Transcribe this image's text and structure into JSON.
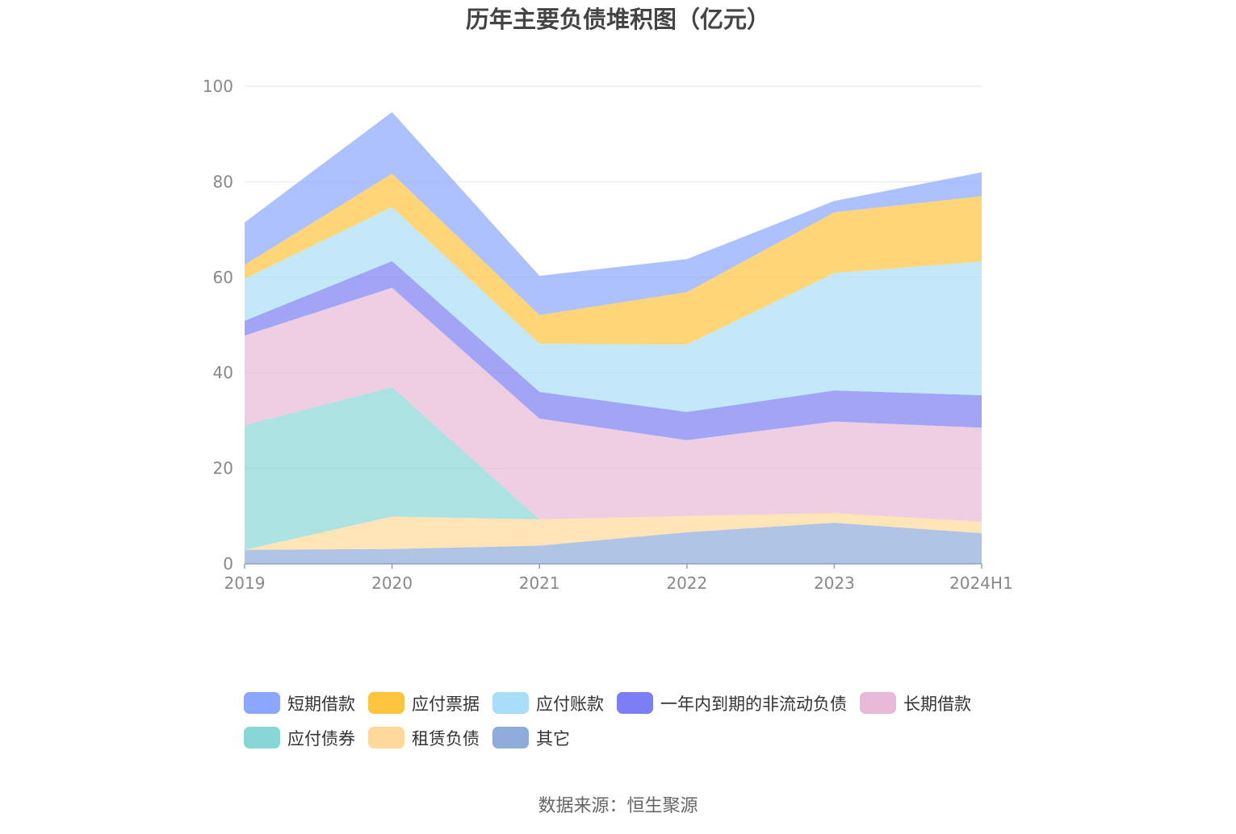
{
  "chart_data": {
    "type": "area",
    "stacked": true,
    "title": "历年主要负债堆积图（亿元）",
    "categories": [
      "2019",
      "2020",
      "2021",
      "2022",
      "2023",
      "2024H1"
    ],
    "ylim": [
      0,
      100
    ],
    "yticks": [
      "0",
      "20",
      "40",
      "60",
      "80",
      "100"
    ],
    "grid": true,
    "legend_position": "bottom",
    "series": [
      {
        "name": "其它",
        "color": "#8FABDC",
        "values": [
          2.9,
          3.1,
          3.8,
          6.6,
          8.6,
          6.4
        ]
      },
      {
        "name": "租赁负债",
        "color": "#FFD999",
        "values": [
          0.0,
          6.8,
          5.5,
          3.4,
          2.0,
          2.4
        ]
      },
      {
        "name": "应付债券",
        "color": "#89D6D6",
        "values": [
          26.1,
          27.1,
          0.0,
          0.0,
          0.0,
          0.0
        ]
      },
      {
        "name": "长期借款",
        "color": "#E8B9D9",
        "values": [
          18.8,
          20.8,
          21.1,
          15.9,
          19.2,
          19.7
        ]
      },
      {
        "name": "一年内到期的非流动负债",
        "color": "#7B7FF2",
        "values": [
          3.1,
          5.6,
          5.6,
          5.9,
          6.5,
          6.8
        ]
      },
      {
        "name": "应付账款",
        "color": "#A9DEF8",
        "values": [
          8.8,
          11.3,
          10.1,
          14.1,
          24.6,
          28.0
        ]
      },
      {
        "name": "应付票据",
        "color": "#FFC43D",
        "values": [
          2.9,
          7.0,
          6.0,
          11.0,
          12.7,
          13.7
        ]
      },
      {
        "name": "短期借款",
        "color": "#8BA6FF",
        "values": [
          8.9,
          12.9,
          8.2,
          6.9,
          2.4,
          5.0
        ]
      }
    ]
  },
  "legend_items": [
    [
      "短期借款",
      "应付票据",
      "应付账款",
      "一年内到期的非流动负债",
      "长期借款"
    ],
    [
      "应付债券",
      "租赁负债",
      "其它"
    ]
  ],
  "source_text": "数据来源：恒生聚源"
}
